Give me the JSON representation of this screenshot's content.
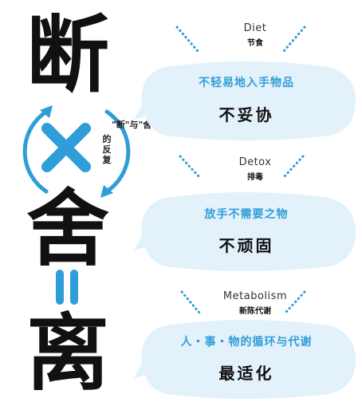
{
  "left": {
    "chars": [
      "断",
      "舍",
      "离"
    ],
    "circle_text": [
      "\"断\"与\"舍\"",
      "的反复"
    ]
  },
  "sections": [
    {
      "title_en": "Diet",
      "title_zh": "节食",
      "subtitle": "不轻易地入手物品",
      "main": "不妥协"
    },
    {
      "title_en": "Detox",
      "title_zh": "排毒",
      "subtitle": "放手不需要之物",
      "main": "不顽固"
    },
    {
      "title_en": "Metabolism",
      "title_zh": "新陈代谢",
      "subtitle": "人・事・物的循环与代谢",
      "main": "最适化"
    }
  ],
  "colors": {
    "accent": "#2f9ed8",
    "bubble": "#e3f1fa",
    "text": "#111111"
  },
  "icons": [
    "x-cross-icon",
    "equals-icon",
    "circular-arrows-icon"
  ]
}
